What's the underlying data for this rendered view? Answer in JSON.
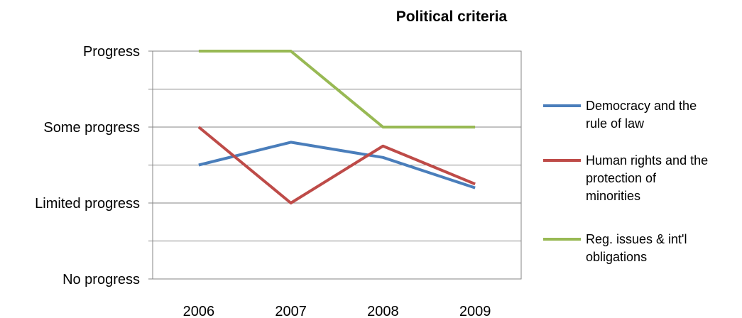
{
  "chart_data": {
    "type": "line",
    "title": "Political criteria",
    "xlabel": "",
    "ylabel": "",
    "categories": [
      "2006",
      "2007",
      "2008",
      "2009"
    ],
    "y_tick_labels": [
      "No progress",
      "Limited progress",
      "Some progress",
      "Progress"
    ],
    "ylim": [
      0,
      3
    ],
    "grid": true,
    "legend_position": "right",
    "series": [
      {
        "name": "Democracy and the rule of law",
        "color": "#4a7ebb",
        "values": [
          1.5,
          1.8,
          1.6,
          1.2
        ]
      },
      {
        "name": "Human rights and the protection of minorities",
        "color": "#be4b48",
        "values": [
          2.0,
          1.0,
          1.75,
          1.25
        ]
      },
      {
        "name": "Reg. issues & int'l obligations",
        "color": "#98b954",
        "values": [
          3.0,
          3.0,
          2.0,
          2.0
        ]
      }
    ],
    "legend_lines": [
      [
        "Democracy and the",
        "rule of law"
      ],
      [
        "Human rights and the",
        "protection of",
        "minorities"
      ],
      [
        "Reg. issues & int'l",
        "obligations"
      ]
    ]
  }
}
